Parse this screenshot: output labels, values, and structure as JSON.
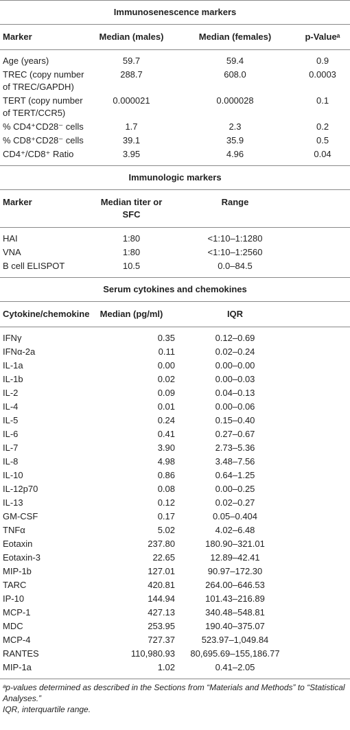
{
  "sections": [
    {
      "title": "Immunosenescence markers",
      "header": [
        "Marker",
        "Median (males)",
        "Median (females)",
        "p-Valueᵃ"
      ],
      "rows": [
        [
          "Age (years)",
          "59.7",
          "59.4",
          "0.9"
        ],
        [
          "TREC (copy number of TREC/GAPDH)",
          "288.7",
          "608.0",
          "0.0003"
        ],
        [
          "TERT (copy number of TERT/CCR5)",
          "0.000021",
          "0.000028",
          "0.1"
        ],
        [
          "% CD4⁺CD28⁻ cells",
          "1.7",
          "2.3",
          "0.2"
        ],
        [
          "% CD8⁺CD28⁻ cells",
          "39.1",
          "35.9",
          "0.5"
        ],
        [
          "CD4⁺/CD8⁺ Ratio",
          "3.95",
          "4.96",
          "0.04"
        ]
      ]
    },
    {
      "title": "Immunologic markers",
      "header": [
        "Marker",
        "Median titer or SFC",
        "Range"
      ],
      "rows": [
        [
          "HAI",
          "1:80",
          "<1:10–1:1280"
        ],
        [
          "VNA",
          "1:80",
          "<1:10–1:2560"
        ],
        [
          "B cell ELISPOT",
          "10.5",
          "0.0–84.5"
        ]
      ]
    },
    {
      "title": "Serum cytokines and chemokines",
      "header": [
        "Cytokine/chemokine",
        "Median (pg/ml)",
        "IQR"
      ],
      "rows": [
        [
          "IFNγ",
          "0.35",
          "0.12–0.69"
        ],
        [
          "IFNα-2a",
          "0.11",
          "0.02–0.24"
        ],
        [
          "IL-1a",
          "0.00",
          "0.00–0.00"
        ],
        [
          "IL-1b",
          "0.02",
          "0.00–0.03"
        ],
        [
          "IL-2",
          "0.09",
          "0.04–0.13"
        ],
        [
          "IL-4",
          "0.01",
          "0.00–0.06"
        ],
        [
          "IL-5",
          "0.24",
          "0.15–0.40"
        ],
        [
          "IL-6",
          "0.41",
          "0.27–0.67"
        ],
        [
          "IL-7",
          "3.90",
          "2.73–5.36"
        ],
        [
          "IL-8",
          "4.98",
          "3.48–7.56"
        ],
        [
          "IL-10",
          "0.86",
          "0.64–1.25"
        ],
        [
          "IL-12p70",
          "0.08",
          "0.00–0.25"
        ],
        [
          "IL-13",
          "0.12",
          "0.02–0.27"
        ],
        [
          "GM-CSF",
          "0.17",
          "0.05–0.404"
        ],
        [
          "TNFα",
          "5.02",
          "4.02–6.48"
        ],
        [
          "Eotaxin",
          "237.80",
          "180.90–321.01"
        ],
        [
          "Eotaxin-3",
          "22.65",
          "12.89–42.41"
        ],
        [
          "MIP-1b",
          "127.01",
          "90.97–172.30"
        ],
        [
          "TARC",
          "420.81",
          "264.00–646.53"
        ],
        [
          "IP-10",
          "144.94",
          "101.43–216.89"
        ],
        [
          "MCP-1",
          "427.13",
          "340.48–548.81"
        ],
        [
          "MDC",
          "253.95",
          "190.40–375.07"
        ],
        [
          "MCP-4",
          "727.37",
          "523.97–1,049.84"
        ],
        [
          "RANTES",
          "110,980.93",
          "80,695.69–155,186.77"
        ],
        [
          "MIP-1a",
          "1.02",
          "0.41–2.05"
        ]
      ]
    }
  ],
  "footnotes": [
    "ᵃp-values determined as described in the Sections from “Materials and Methods” to “Statistical Analyses.”",
    "IQR, interquartile range."
  ]
}
